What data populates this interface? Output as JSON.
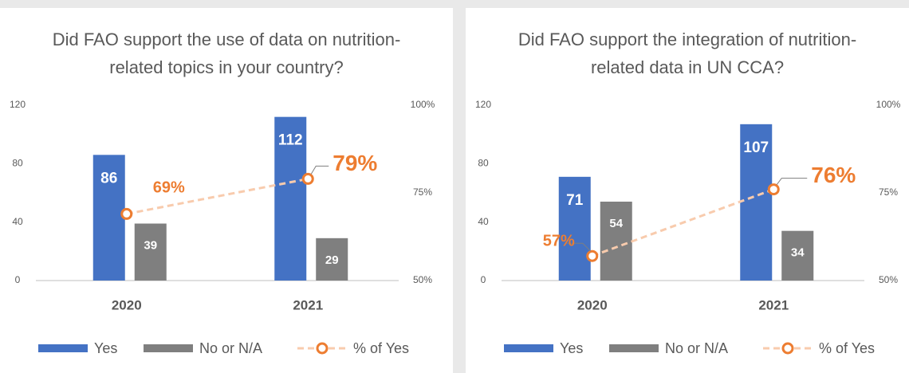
{
  "chart_data": [
    {
      "type": "bar",
      "title": "Did FAO support the use of data on nutrition-related topics in your country?",
      "categories": [
        "2020",
        "2021"
      ],
      "series": [
        {
          "name": "Yes",
          "color": "#4472c4",
          "values": [
            86,
            112
          ]
        },
        {
          "name": "No or N/A",
          "color": "#7f7f7f",
          "values": [
            39,
            29
          ]
        },
        {
          "name": "% of Yes",
          "color": "#ed7d31",
          "axis": "y2",
          "type": "line",
          "values": [
            69,
            79
          ],
          "value_labels": [
            "69%",
            "79%"
          ]
        }
      ],
      "ylim": [
        0,
        120
      ],
      "yticks": [
        0,
        40,
        80,
        120
      ],
      "y2lim": [
        50,
        100
      ],
      "y2ticks": [
        {
          "value": 50,
          "label": "50%"
        },
        {
          "value": 75,
          "label": "75%"
        },
        {
          "value": 100,
          "label": "100%"
        }
      ],
      "legend": "bottom"
    },
    {
      "type": "bar",
      "title": "Did FAO support the integration of nutrition-related data in UN CCA?",
      "categories": [
        "2020",
        "2021"
      ],
      "series": [
        {
          "name": "Yes",
          "color": "#4472c4",
          "values": [
            71,
            107
          ]
        },
        {
          "name": "No or N/A",
          "color": "#7f7f7f",
          "values": [
            54,
            34
          ]
        },
        {
          "name": "% of Yes",
          "color": "#ed7d31",
          "axis": "y2",
          "type": "line",
          "values": [
            57,
            76
          ],
          "value_labels": [
            "57%",
            "76%"
          ]
        }
      ],
      "ylim": [
        0,
        120
      ],
      "yticks": [
        0,
        40,
        80,
        120
      ],
      "y2lim": [
        50,
        100
      ],
      "y2ticks": [
        {
          "value": 50,
          "label": "50%"
        },
        {
          "value": 75,
          "label": "75%"
        },
        {
          "value": 100,
          "label": "100%"
        }
      ],
      "legend": "bottom"
    }
  ]
}
